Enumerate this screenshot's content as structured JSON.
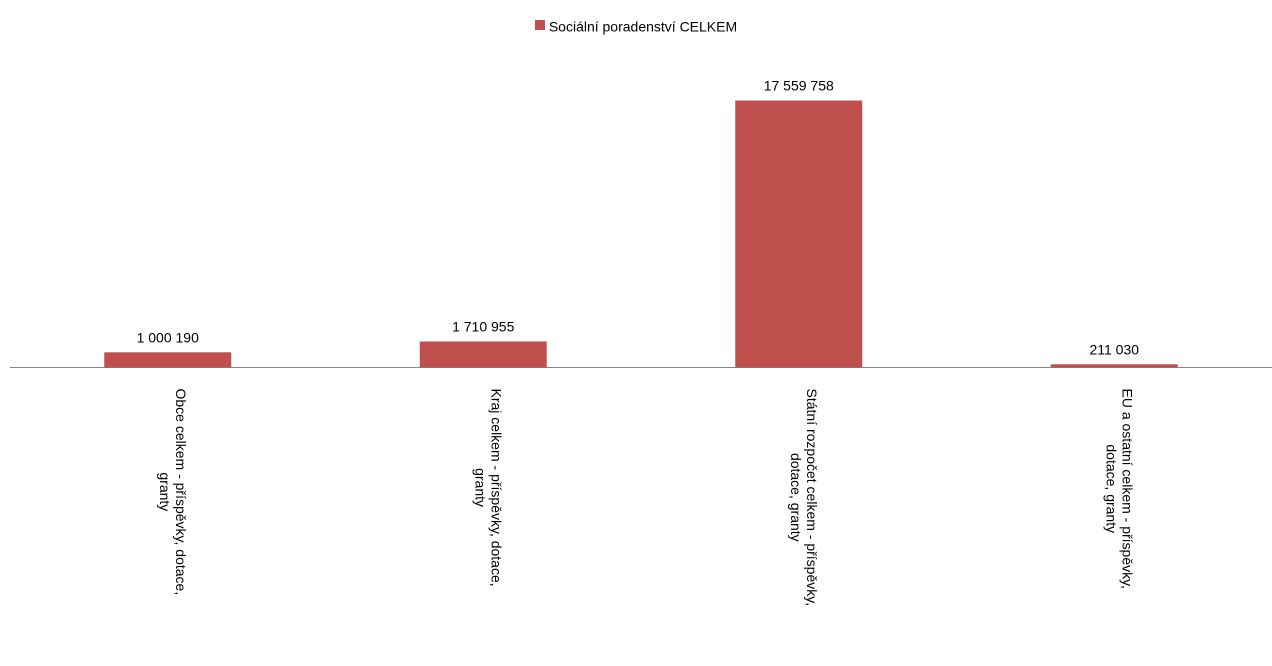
{
  "chart_data": {
    "type": "bar",
    "categories": [
      [
        "Obce celkem - příspěvky, dotace,",
        "granty"
      ],
      [
        "Kraj celkem - příspěvky, dotace,",
        "granty"
      ],
      [
        "Státní rozpočet celkem - příspěvky,",
        "dotace, granty"
      ],
      [
        "EU a ostatní celkem - příspěvky,",
        "dotace, granty"
      ]
    ],
    "series": [
      {
        "name": "Sociální poradenství CELKEM",
        "values": [
          1000190,
          1710955,
          17559758,
          211030
        ],
        "value_labels": [
          "1 000 190",
          "1 710 955",
          "17 559 758",
          "211 030"
        ],
        "color": "#c0504d"
      }
    ],
    "ylim": [
      0,
      17559758
    ],
    "grid": false,
    "legend_position": "top-center"
  }
}
